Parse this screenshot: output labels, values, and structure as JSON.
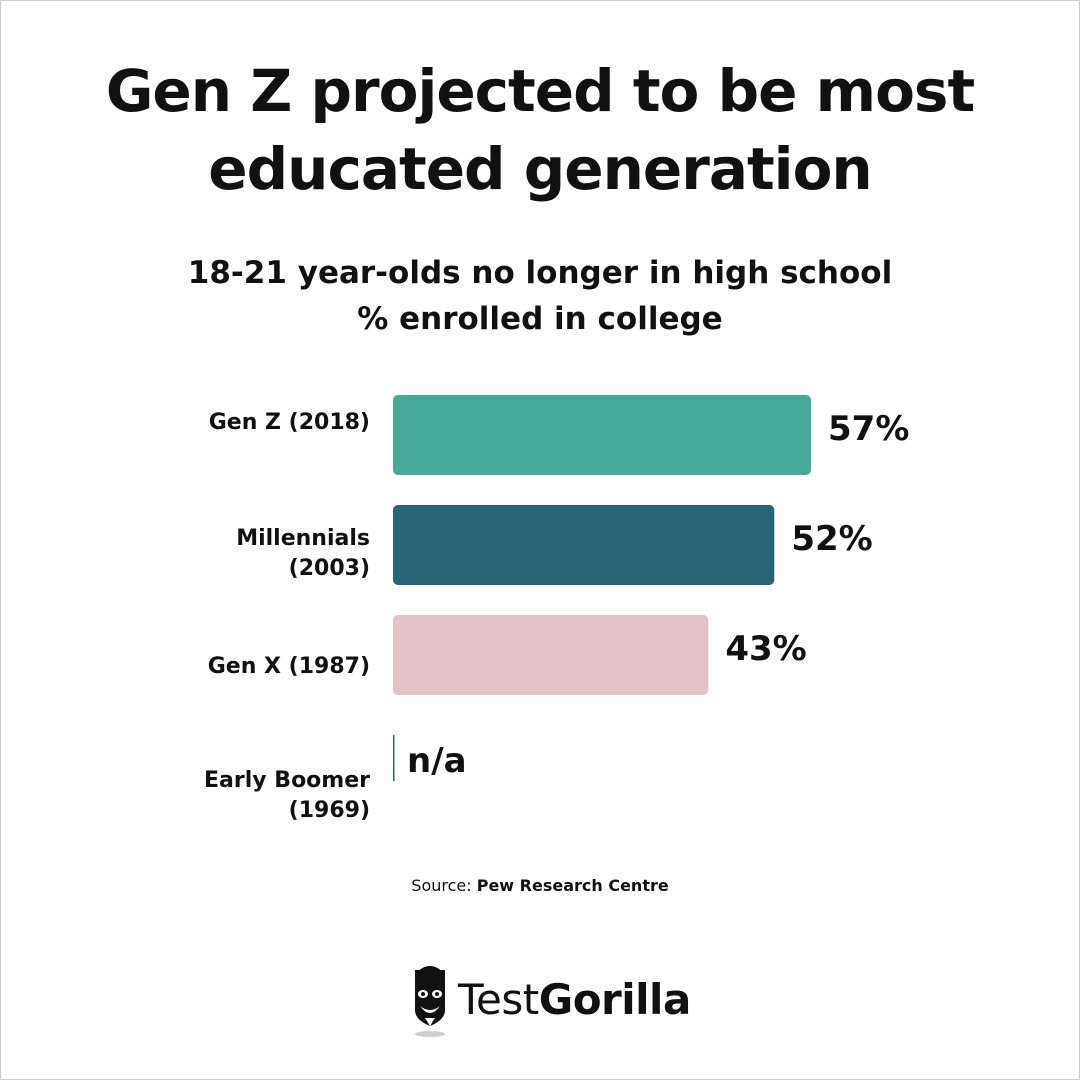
{
  "title_lines": [
    "Gen Z projected to be most",
    "educated generation"
  ],
  "subtitle_lines": [
    "18-21 year-olds no longer in high school",
    "% enrolled in college"
  ],
  "chart_data": {
    "type": "bar",
    "orientation": "horizontal",
    "title": "18-21 year-olds no longer in high school",
    "xlabel": "% enrolled in college",
    "xlim": [
      0,
      57
    ],
    "categories": [
      {
        "lines": [
          "Gen Z (2018)"
        ]
      },
      {
        "lines": [
          "Millennials",
          "(2003)"
        ]
      },
      {
        "lines": [
          "Gen X (1987)"
        ]
      },
      {
        "lines": [
          "Early Boomer",
          "(1969)"
        ]
      }
    ],
    "values": [
      57,
      52,
      43,
      null
    ],
    "value_labels": [
      "57%",
      "52%",
      "43%",
      "n/a"
    ],
    "colors": [
      "#48aa98",
      "#286677",
      "#e3c3c6",
      "#286677"
    ]
  },
  "source": {
    "prefix": "Source:",
    "name": "Pew Research Centre"
  },
  "logo": {
    "light": "Test",
    "bold": "Gorilla"
  }
}
